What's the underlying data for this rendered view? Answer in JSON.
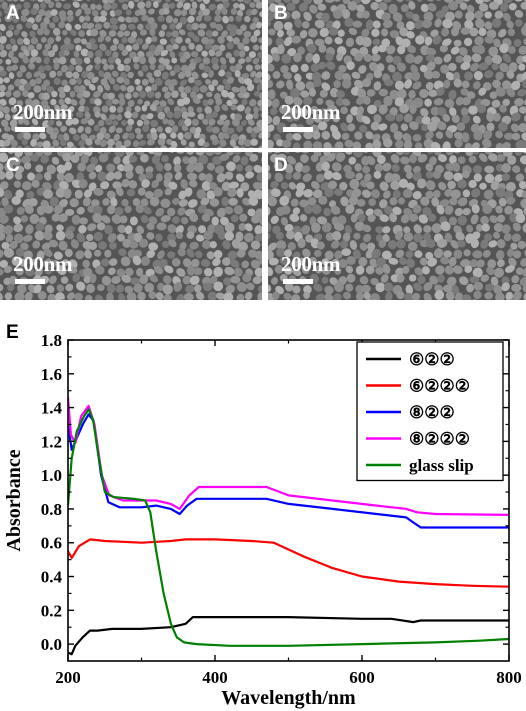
{
  "sem_panels": [
    {
      "letter": "A",
      "scale_bar": "200nm"
    },
    {
      "letter": "B",
      "scale_bar": "200nm"
    },
    {
      "letter": "C",
      "scale_bar": "200nm"
    },
    {
      "letter": "D",
      "scale_bar": "200nm"
    }
  ],
  "chart_data": {
    "type": "line",
    "panel_label": "E",
    "xlabel": "Wavelength/nm",
    "ylabel": "Absorbance",
    "xlim": [
      200,
      800
    ],
    "ylim": [
      -0.1,
      1.8
    ],
    "x_ticks": [
      200,
      400,
      600,
      800
    ],
    "y_ticks": [
      0.0,
      0.2,
      0.4,
      0.6,
      0.8,
      1.0,
      1.2,
      1.4,
      1.6,
      1.8
    ],
    "grid": false,
    "legend_position": "top-right",
    "series": [
      {
        "name": "⑥②②",
        "color": "#000000",
        "points": [
          [
            200,
            -0.05
          ],
          [
            205,
            -0.06
          ],
          [
            210,
            -0.01
          ],
          [
            220,
            0.04
          ],
          [
            230,
            0.08
          ],
          [
            240,
            0.08
          ],
          [
            260,
            0.09
          ],
          [
            300,
            0.09
          ],
          [
            340,
            0.1
          ],
          [
            360,
            0.12
          ],
          [
            370,
            0.16
          ],
          [
            400,
            0.16
          ],
          [
            460,
            0.16
          ],
          [
            500,
            0.16
          ],
          [
            600,
            0.15
          ],
          [
            640,
            0.15
          ],
          [
            670,
            0.13
          ],
          [
            680,
            0.14
          ],
          [
            720,
            0.14
          ],
          [
            800,
            0.14
          ]
        ]
      },
      {
        "name": "⑥②②②",
        "color": "#ff0000",
        "points": [
          [
            200,
            0.55
          ],
          [
            205,
            0.51
          ],
          [
            215,
            0.58
          ],
          [
            230,
            0.62
          ],
          [
            250,
            0.61
          ],
          [
            300,
            0.6
          ],
          [
            340,
            0.61
          ],
          [
            360,
            0.62
          ],
          [
            400,
            0.62
          ],
          [
            450,
            0.61
          ],
          [
            480,
            0.6
          ],
          [
            520,
            0.52
          ],
          [
            560,
            0.45
          ],
          [
            600,
            0.4
          ],
          [
            650,
            0.37
          ],
          [
            700,
            0.355
          ],
          [
            750,
            0.345
          ],
          [
            800,
            0.34
          ]
        ]
      },
      {
        "name": "⑧②②",
        "color": "#0000ff",
        "points": [
          [
            200,
            1.3
          ],
          [
            205,
            1.15
          ],
          [
            212,
            1.22
          ],
          [
            220,
            1.3
          ],
          [
            228,
            1.36
          ],
          [
            235,
            1.32
          ],
          [
            245,
            1.0
          ],
          [
            255,
            0.84
          ],
          [
            270,
            0.81
          ],
          [
            300,
            0.81
          ],
          [
            320,
            0.82
          ],
          [
            340,
            0.8
          ],
          [
            352,
            0.77
          ],
          [
            362,
            0.82
          ],
          [
            375,
            0.86
          ],
          [
            420,
            0.86
          ],
          [
            470,
            0.86
          ],
          [
            500,
            0.83
          ],
          [
            560,
            0.8
          ],
          [
            620,
            0.77
          ],
          [
            660,
            0.75
          ],
          [
            670,
            0.72
          ],
          [
            680,
            0.69
          ],
          [
            720,
            0.69
          ],
          [
            800,
            0.69
          ]
        ]
      },
      {
        "name": "⑧②②②",
        "color": "#ff00ff",
        "points": [
          [
            200,
            1.46
          ],
          [
            204,
            1.24
          ],
          [
            210,
            1.19
          ],
          [
            218,
            1.35
          ],
          [
            228,
            1.41
          ],
          [
            236,
            1.3
          ],
          [
            246,
            1.0
          ],
          [
            256,
            0.88
          ],
          [
            275,
            0.85
          ],
          [
            300,
            0.85
          ],
          [
            320,
            0.85
          ],
          [
            340,
            0.83
          ],
          [
            352,
            0.8
          ],
          [
            365,
            0.88
          ],
          [
            378,
            0.93
          ],
          [
            420,
            0.93
          ],
          [
            470,
            0.93
          ],
          [
            500,
            0.88
          ],
          [
            560,
            0.85
          ],
          [
            620,
            0.82
          ],
          [
            660,
            0.8
          ],
          [
            675,
            0.78
          ],
          [
            700,
            0.77
          ],
          [
            800,
            0.765
          ]
        ]
      },
      {
        "name": "glass slip",
        "color": "#008000",
        "points": [
          [
            200,
            0.82
          ],
          [
            205,
            1.1
          ],
          [
            212,
            1.26
          ],
          [
            222,
            1.35
          ],
          [
            228,
            1.39
          ],
          [
            234,
            1.33
          ],
          [
            242,
            1.1
          ],
          [
            250,
            0.9
          ],
          [
            262,
            0.87
          ],
          [
            290,
            0.86
          ],
          [
            305,
            0.85
          ],
          [
            312,
            0.78
          ],
          [
            320,
            0.55
          ],
          [
            330,
            0.3
          ],
          [
            340,
            0.12
          ],
          [
            348,
            0.04
          ],
          [
            358,
            0.01
          ],
          [
            375,
            0.0
          ],
          [
            420,
            -0.01
          ],
          [
            500,
            -0.01
          ],
          [
            600,
            0.0
          ],
          [
            700,
            0.01
          ],
          [
            760,
            0.02
          ],
          [
            800,
            0.03
          ]
        ]
      }
    ]
  }
}
